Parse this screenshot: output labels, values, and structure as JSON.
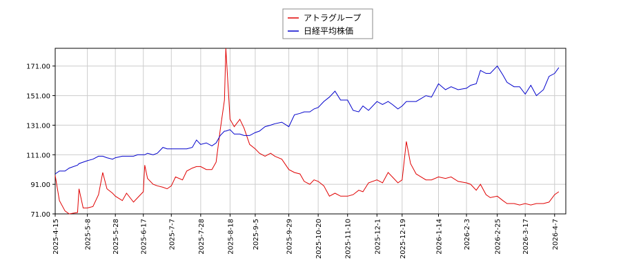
{
  "chart_data": {
    "type": "line",
    "x": [
      "2025-4-15",
      "2025-4-18",
      "2025-4-22",
      "2025-4-25",
      "2025-5-1",
      "2025-5-2",
      "2025-5-5",
      "2025-5-8",
      "2025-5-12",
      "2025-5-16",
      "2025-5-19",
      "2025-5-22",
      "2025-5-26",
      "2025-5-28",
      "2025-6-2",
      "2025-6-5",
      "2025-6-10",
      "2025-6-13",
      "2025-6-17",
      "2025-6-18",
      "2025-6-20",
      "2025-6-24",
      "2025-6-27",
      "2025-7-1",
      "2025-7-4",
      "2025-7-7",
      "2025-7-10",
      "2025-7-15",
      "2025-7-18",
      "2025-7-22",
      "2025-7-25",
      "2025-7-28",
      "2025-8-1",
      "2025-8-5",
      "2025-8-8",
      "2025-8-11",
      "2025-8-14",
      "2025-8-15",
      "2025-8-18",
      "2025-8-21",
      "2025-8-25",
      "2025-8-28",
      "2025-9-1",
      "2025-9-5",
      "2025-9-8",
      "2025-9-12",
      "2025-9-16",
      "2025-9-19",
      "2025-9-24",
      "2025-9-29",
      "2025-10-3",
      "2025-10-7",
      "2025-10-10",
      "2025-10-14",
      "2025-10-17",
      "2025-10-20",
      "2025-10-24",
      "2025-10-28",
      "2025-11-1",
      "2025-11-5",
      "2025-11-10",
      "2025-11-14",
      "2025-11-18",
      "2025-11-21",
      "2025-11-25",
      "2025-12-1",
      "2025-12-5",
      "2025-12-9",
      "2025-12-12",
      "2025-12-16",
      "2025-12-19",
      "2025-12-22",
      "2025-12-25",
      "2025-12-29",
      "2026-1-5",
      "2026-1-9",
      "2026-1-14",
      "2026-1-19",
      "2026-1-23",
      "2026-1-28",
      "2026-2-3",
      "2026-2-6",
      "2026-2-10",
      "2026-2-13",
      "2026-2-17",
      "2026-2-20",
      "2026-2-25",
      "2026-3-1",
      "2026-3-4",
      "2026-3-9",
      "2026-3-13",
      "2026-3-17",
      "2026-3-21",
      "2026-3-25",
      "2026-3-30",
      "2026-4-3",
      "2026-4-7",
      "2026-4-10"
    ],
    "series": [
      {
        "name": "アトラグループ",
        "color": "#e00000",
        "values": [
          97,
          80,
          73,
          71,
          72,
          88,
          75,
          75,
          76,
          84,
          99,
          88,
          85,
          83,
          80,
          85,
          79,
          82,
          86,
          104,
          95,
          91,
          90,
          89,
          88,
          90,
          96,
          94,
          100,
          102,
          103,
          103,
          101,
          101,
          106,
          128,
          148,
          183,
          135,
          130,
          135,
          129,
          118,
          115,
          112,
          110,
          112,
          110,
          108,
          101,
          99,
          98,
          93,
          91,
          94,
          93,
          90,
          83,
          85,
          83,
          83,
          84,
          87,
          86,
          92,
          94,
          92,
          99,
          96,
          92,
          94,
          120,
          105,
          98,
          94,
          94,
          96,
          95,
          96,
          93,
          92,
          91,
          87,
          91,
          84,
          82,
          83,
          80,
          78,
          78,
          77,
          78,
          77,
          78,
          78,
          79,
          84,
          86
        ]
      },
      {
        "name": "日経平均株価",
        "color": "#0000cc",
        "values": [
          98,
          100,
          100,
          102,
          104,
          105,
          106,
          107,
          108,
          110,
          110,
          109,
          108,
          109,
          110,
          110,
          110,
          111,
          111,
          111,
          112,
          111,
          112,
          116,
          115,
          115,
          115,
          115,
          115,
          116,
          121,
          118,
          119,
          117,
          119,
          124,
          127,
          127,
          128,
          125,
          125,
          124,
          124,
          126,
          127,
          130,
          131,
          132,
          133,
          130,
          138,
          139,
          140,
          140,
          142,
          143,
          147,
          150,
          154,
          148,
          148,
          141,
          140,
          144,
          141,
          147,
          145,
          147,
          145,
          142,
          144,
          147,
          147,
          147,
          151,
          150,
          159,
          155,
          157,
          155,
          156,
          158,
          159,
          168,
          166,
          166,
          171,
          165,
          160,
          157,
          157,
          152,
          158,
          151,
          155,
          164,
          166,
          170
        ]
      }
    ],
    "xlim": [
      "2025-4-15",
      "2026-4-15"
    ],
    "xticks": [
      "2025-4-15",
      "2025-5-8",
      "2025-5-28",
      "2025-6-17",
      "2025-7-7",
      "2025-7-28",
      "2025-8-18",
      "2025-9-5",
      "2025-9-29",
      "2025-10-20",
      "2025-11-10",
      "2025-12-1",
      "2025-12-19",
      "2026-1-14",
      "2026-2-3",
      "2026-2-25",
      "2026-3-17",
      "2026-4-7"
    ],
    "ylim": [
      71,
      183
    ],
    "yticks": [
      {
        "value": 71,
        "label": "71.00"
      },
      {
        "value": 91,
        "label": "91.00"
      },
      {
        "value": 111,
        "label": "111.00"
      },
      {
        "value": 131,
        "label": "131.00"
      },
      {
        "value": 151,
        "label": "151.00"
      },
      {
        "value": 171,
        "label": "171.00"
      }
    ],
    "grid": true
  }
}
